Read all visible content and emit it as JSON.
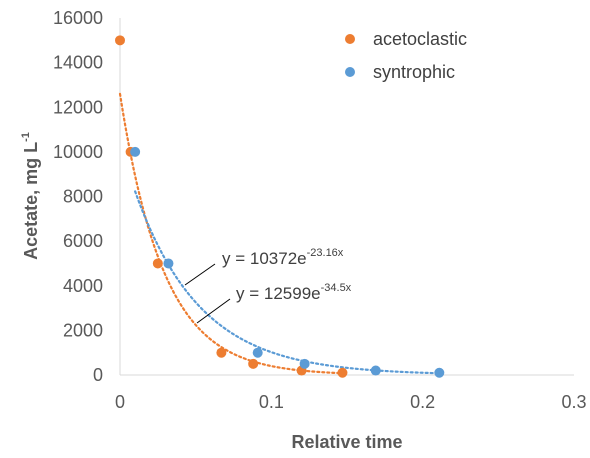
{
  "chart_data": {
    "type": "scatter",
    "title": "",
    "xlabel": "Relative time",
    "ylabel": "Acetate, mg L",
    "ylabel_superscript": "-1",
    "xlim": [
      0,
      0.3
    ],
    "ylim": [
      0,
      16000
    ],
    "x_ticks": [
      "0",
      "0.1",
      "0.2",
      "0.3"
    ],
    "y_ticks": [
      "0",
      "2000",
      "4000",
      "6000",
      "8000",
      "10000",
      "12000",
      "14000",
      "16000"
    ],
    "grid": false,
    "legend_position": "top-right",
    "series": [
      {
        "name": "acetoclastic",
        "color": "#ED7D31",
        "points": [
          {
            "x": 0.0,
            "y": 15000
          },
          {
            "x": 0.007,
            "y": 10000
          },
          {
            "x": 0.025,
            "y": 5000
          },
          {
            "x": 0.067,
            "y": 1000
          },
          {
            "x": 0.088,
            "y": 500
          },
          {
            "x": 0.12,
            "y": 200
          },
          {
            "x": 0.147,
            "y": 100
          }
        ],
        "trendline": {
          "type": "exponential",
          "a": 12599,
          "b": -34.5,
          "equation_base": "y = 12599e",
          "equation_exponent": "-34.5x"
        }
      },
      {
        "name": "syntrophic",
        "color": "#5B9BD5",
        "points": [
          {
            "x": 0.01,
            "y": 10000
          },
          {
            "x": 0.032,
            "y": 5000
          },
          {
            "x": 0.091,
            "y": 1000
          },
          {
            "x": 0.122,
            "y": 500
          },
          {
            "x": 0.169,
            "y": 200
          },
          {
            "x": 0.211,
            "y": 100
          }
        ],
        "trendline": {
          "type": "exponential",
          "a": 10372,
          "b": -23.16,
          "equation_base": "y = 10372e",
          "equation_exponent": "-23.16x"
        }
      }
    ]
  }
}
